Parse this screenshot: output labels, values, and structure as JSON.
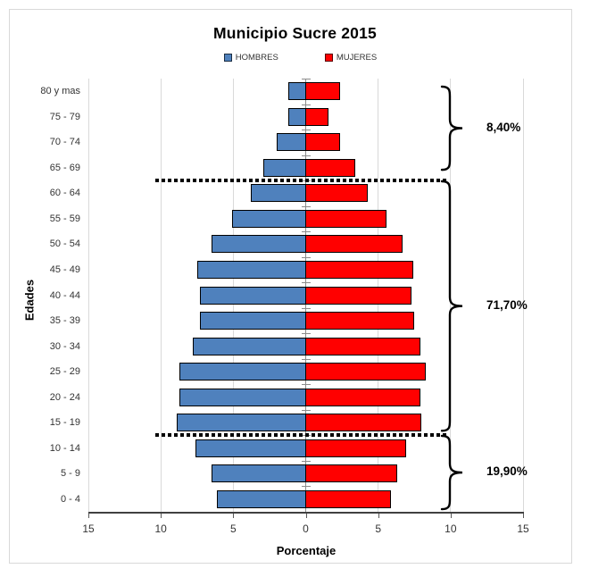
{
  "chart_data": {
    "type": "bar",
    "subtype": "population-pyramid",
    "title": "Municipio Sucre 2015",
    "xlabel": "Porcentaje",
    "ylabel": "Edades",
    "grid": true,
    "legend_position": "top",
    "x_axis": {
      "range": [
        -15,
        15
      ],
      "ticks": [
        {
          "value": -15,
          "label": "15"
        },
        {
          "value": -10,
          "label": "10"
        },
        {
          "value": -5,
          "label": "5"
        },
        {
          "value": 0,
          "label": "0"
        },
        {
          "value": 5,
          "label": "5"
        },
        {
          "value": 10,
          "label": "10"
        },
        {
          "value": 15,
          "label": "15"
        }
      ]
    },
    "categories": [
      "80 y mas",
      "75 - 79",
      "70 - 74",
      "65 - 69",
      "60 - 64",
      "55 - 59",
      "50 - 54",
      "45 - 49",
      "40 - 44",
      "35 - 39",
      "30 - 34",
      "25 - 29",
      "20 - 24",
      "15 - 19",
      "10 - 14",
      "5 - 9",
      "0 - 4"
    ],
    "series": [
      {
        "name": "HOMBRES",
        "side": "left",
        "color": "#4F81BD",
        "values": [
          1.2,
          1.2,
          2.0,
          2.9,
          3.8,
          5.1,
          6.5,
          7.5,
          7.3,
          7.3,
          7.8,
          8.7,
          8.7,
          8.9,
          7.6,
          6.5,
          6.1
        ]
      },
      {
        "name": "MUJERES",
        "side": "right",
        "color": "#FF0000",
        "values": [
          2.4,
          1.6,
          2.4,
          3.4,
          4.3,
          5.6,
          6.7,
          7.4,
          7.3,
          7.5,
          7.9,
          8.3,
          7.9,
          8.0,
          6.9,
          6.3,
          5.9
        ]
      }
    ],
    "separators": [
      4,
      14
    ],
    "annotations": [
      {
        "label": "8,40%",
        "rows": [
          0,
          3
        ]
      },
      {
        "label": "71,70%",
        "rows": [
          4,
          13
        ]
      },
      {
        "label": "19,90%",
        "rows": [
          14,
          16
        ]
      }
    ],
    "colors": {
      "grid": "#D9D9D9",
      "axis": "#404040",
      "bar_border": "#000000",
      "annotation": "#000000"
    }
  }
}
